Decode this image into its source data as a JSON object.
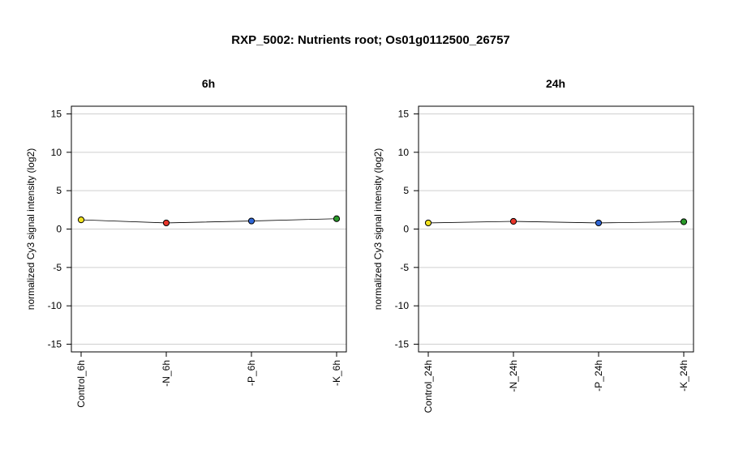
{
  "chart_data": {
    "title": "RXP_5002: Nutrients root; Os01g0112500_26757",
    "panels": [
      {
        "type": "line",
        "title": "6h",
        "ylabel": "normalized Cy3 signal intensity (log2)",
        "ylim": [
          -16,
          16
        ],
        "yticks": [
          15,
          10,
          5,
          0,
          -5,
          -10,
          -15
        ],
        "grid": true,
        "categories": [
          "Control_6h",
          "-N_6h",
          "-P_6h",
          "-K_6h"
        ],
        "values": [
          1.2,
          0.8,
          1.05,
          1.35
        ],
        "colors": [
          "#f2e21e",
          "#e8352a",
          "#2f66d6",
          "#2a9a2a"
        ]
      },
      {
        "type": "line",
        "title": "24h",
        "ylabel": "normalized Cy3 signal intensity (log2)",
        "ylim": [
          -16,
          16
        ],
        "yticks": [
          15,
          10,
          5,
          0,
          -5,
          -10,
          -15
        ],
        "grid": true,
        "categories": [
          "Control_24h",
          "-N_24h",
          "-P_24h",
          "-K_24h"
        ],
        "values": [
          0.8,
          1.0,
          0.8,
          0.95
        ],
        "colors": [
          "#f2e21e",
          "#e8352a",
          "#2f66d6",
          "#2a9a2a"
        ]
      }
    ]
  }
}
